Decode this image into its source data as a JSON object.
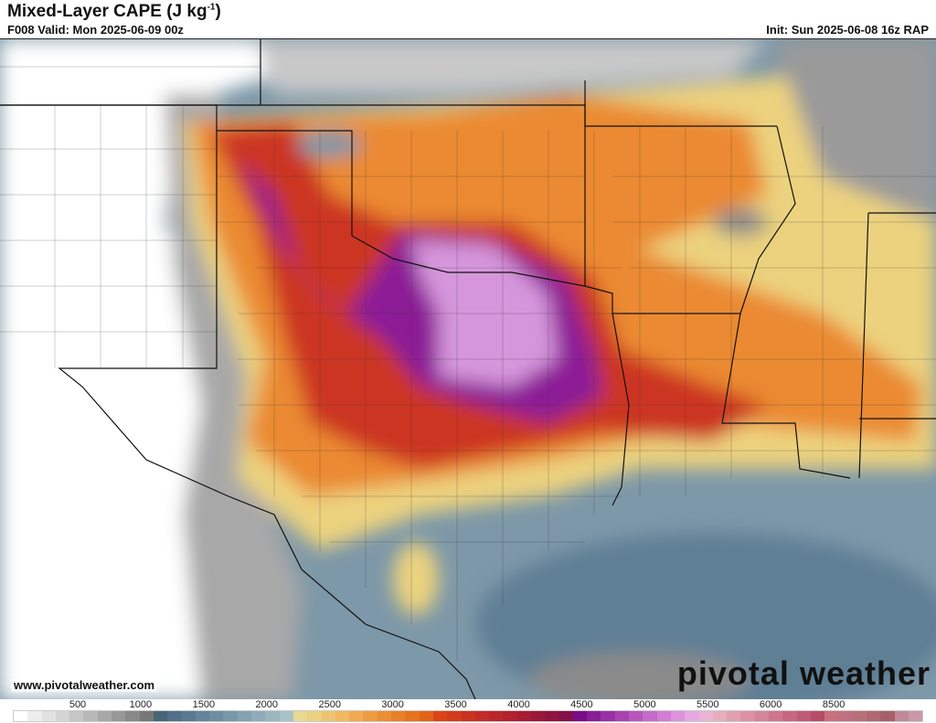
{
  "header": {
    "title": "Mixed-Layer CAPE (J kg",
    "title_sup": "-1",
    "title_end": ")",
    "valid": "F008 Valid: Mon 2025-06-09 00z",
    "init": "Init: Sun 2025-06-08 16z RAP"
  },
  "footer": {
    "url": "www.pivotalweather.com",
    "brand": "pivotal weather"
  },
  "colorbar": {
    "ticks": [
      "500",
      "1000",
      "1500",
      "2000",
      "2500",
      "3000",
      "3500",
      "4000",
      "4500",
      "5000",
      "5500",
      "6000",
      "8500"
    ],
    "colors": [
      "#ffffff",
      "#eeeeee",
      "#e2e2e2",
      "#d4d4d4",
      "#c6c6c6",
      "#b8b8b8",
      "#a8a8a8",
      "#989898",
      "#888888",
      "#787878",
      "#4a6478",
      "#52708a",
      "#5a7a92",
      "#64849a",
      "#6e8ea2",
      "#7898aa",
      "#84a2b2",
      "#90acba",
      "#9cb6c0",
      "#a8c2c8",
      "#e8d890",
      "#ecd082",
      "#eec470",
      "#f0b860",
      "#f0aa50",
      "#ee9c42",
      "#ec8e34",
      "#ea8028",
      "#e8721e",
      "#e26418",
      "#dc4418",
      "#d43a1c",
      "#cc3220",
      "#c42c26",
      "#bc262a",
      "#b4202e",
      "#a81c34",
      "#9c1838",
      "#901440",
      "#861048",
      "#7a0c8a",
      "#8a1e98",
      "#9a30a6",
      "#aa42b2",
      "#b856be",
      "#c66aca",
      "#d27ed4",
      "#dc92dc",
      "#e6a8e4",
      "#eab4d6",
      "#e6aebc",
      "#e2a0ae",
      "#dc92a2",
      "#d68498",
      "#d0768c",
      "#c86880",
      "#c05a74",
      "#b84c68",
      "#c8707c",
      "#c07080",
      "#b87078",
      "#b06870",
      "#a86068",
      "#c08898",
      "#c898a8"
    ]
  },
  "map": {
    "colors": {
      "background": "#7d98a8",
      "gray": "#8a8a8a",
      "blue": "#5f7f95",
      "yellow": "#ecd27e",
      "orange": "#eb8a32",
      "red": "#cc3424",
      "purple": "#8c1c96",
      "lavender": "#d696dc"
    }
  }
}
